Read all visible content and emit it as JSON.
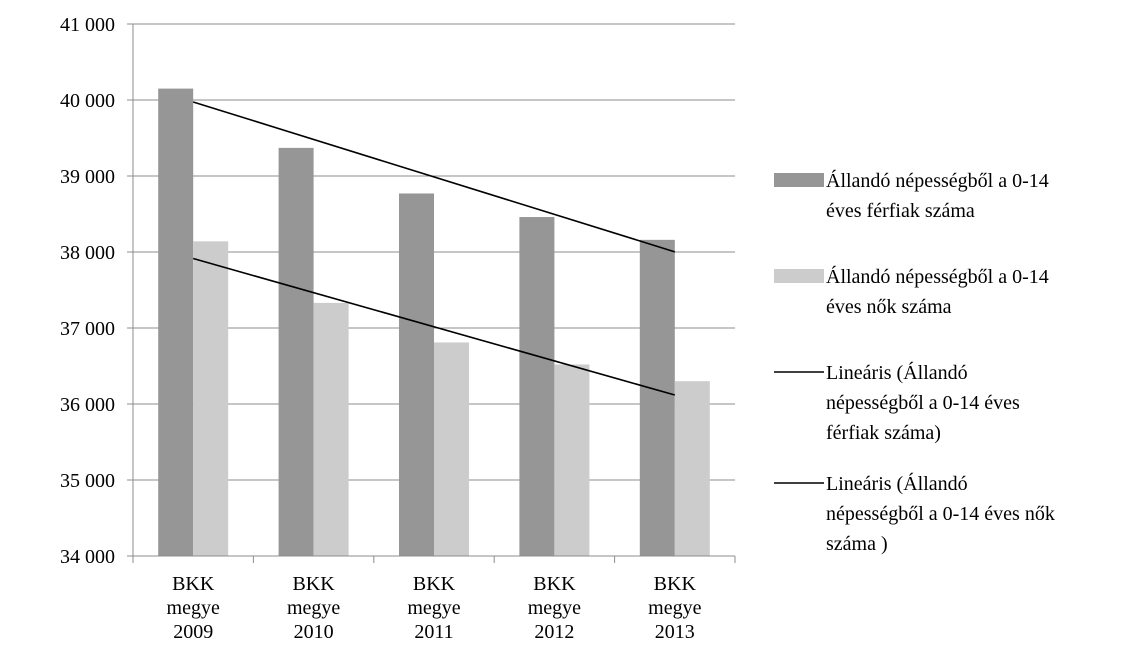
{
  "chart_data": {
    "type": "bar",
    "categories": [
      [
        "BKK",
        "megye",
        "2009"
      ],
      [
        "BKK",
        "megye",
        "2010"
      ],
      [
        "BKK",
        "megye",
        "2011"
      ],
      [
        "BKK",
        "megye",
        "2012"
      ],
      [
        "BKK",
        "megye",
        "2013"
      ]
    ],
    "y_ticks": [
      "34 000",
      "35 000",
      "36 000",
      "37 000",
      "38 000",
      "39 000",
      "40 000",
      "41 000"
    ],
    "ylim": [
      34000,
      41000
    ],
    "y_step": 1000,
    "grid": true,
    "legend_position": "right",
    "series": [
      {
        "name": [
          "Állandó népességből a 0-14",
          "éves férfiak száma"
        ],
        "values": [
          40150,
          39370,
          38770,
          38460,
          38160
        ],
        "color": "#969696"
      },
      {
        "name": [
          "Állandó népességből a 0-14",
          "éves nők száma"
        ],
        "values": [
          38140,
          37330,
          36810,
          36520,
          36300
        ],
        "color": "#cccccc"
      }
    ],
    "trendlines": [
      {
        "name": [
          "Lineáris (Állandó",
          "népességből a 0-14 éves",
          "férfiak száma)"
        ],
        "start": 39974,
        "end": 38002,
        "color": "#000000"
      },
      {
        "name": [
          "Lineáris (Állandó",
          "népességből a 0-14 éves nők",
          "száma )"
        ],
        "start": 37914,
        "end": 36118,
        "color": "#000000"
      }
    ]
  }
}
